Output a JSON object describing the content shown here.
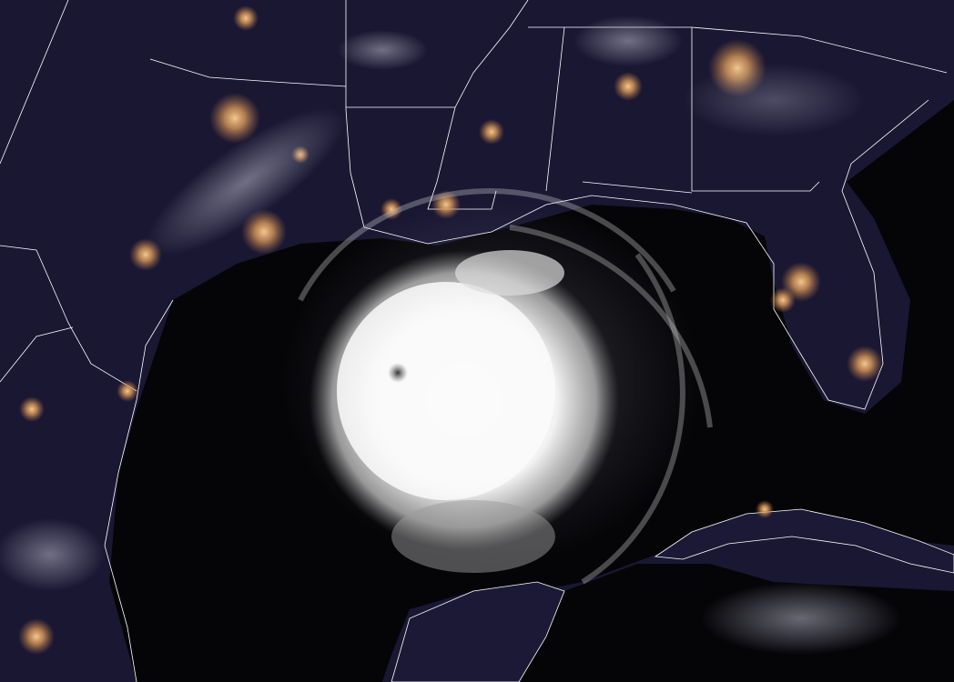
{
  "image": {
    "subject": "hurricane",
    "colors": {
      "land": "#1c1936",
      "water": "#050508",
      "city_lights": "#e0a060",
      "cloud": "#ffffff",
      "borders": "#ffffff"
    }
  }
}
